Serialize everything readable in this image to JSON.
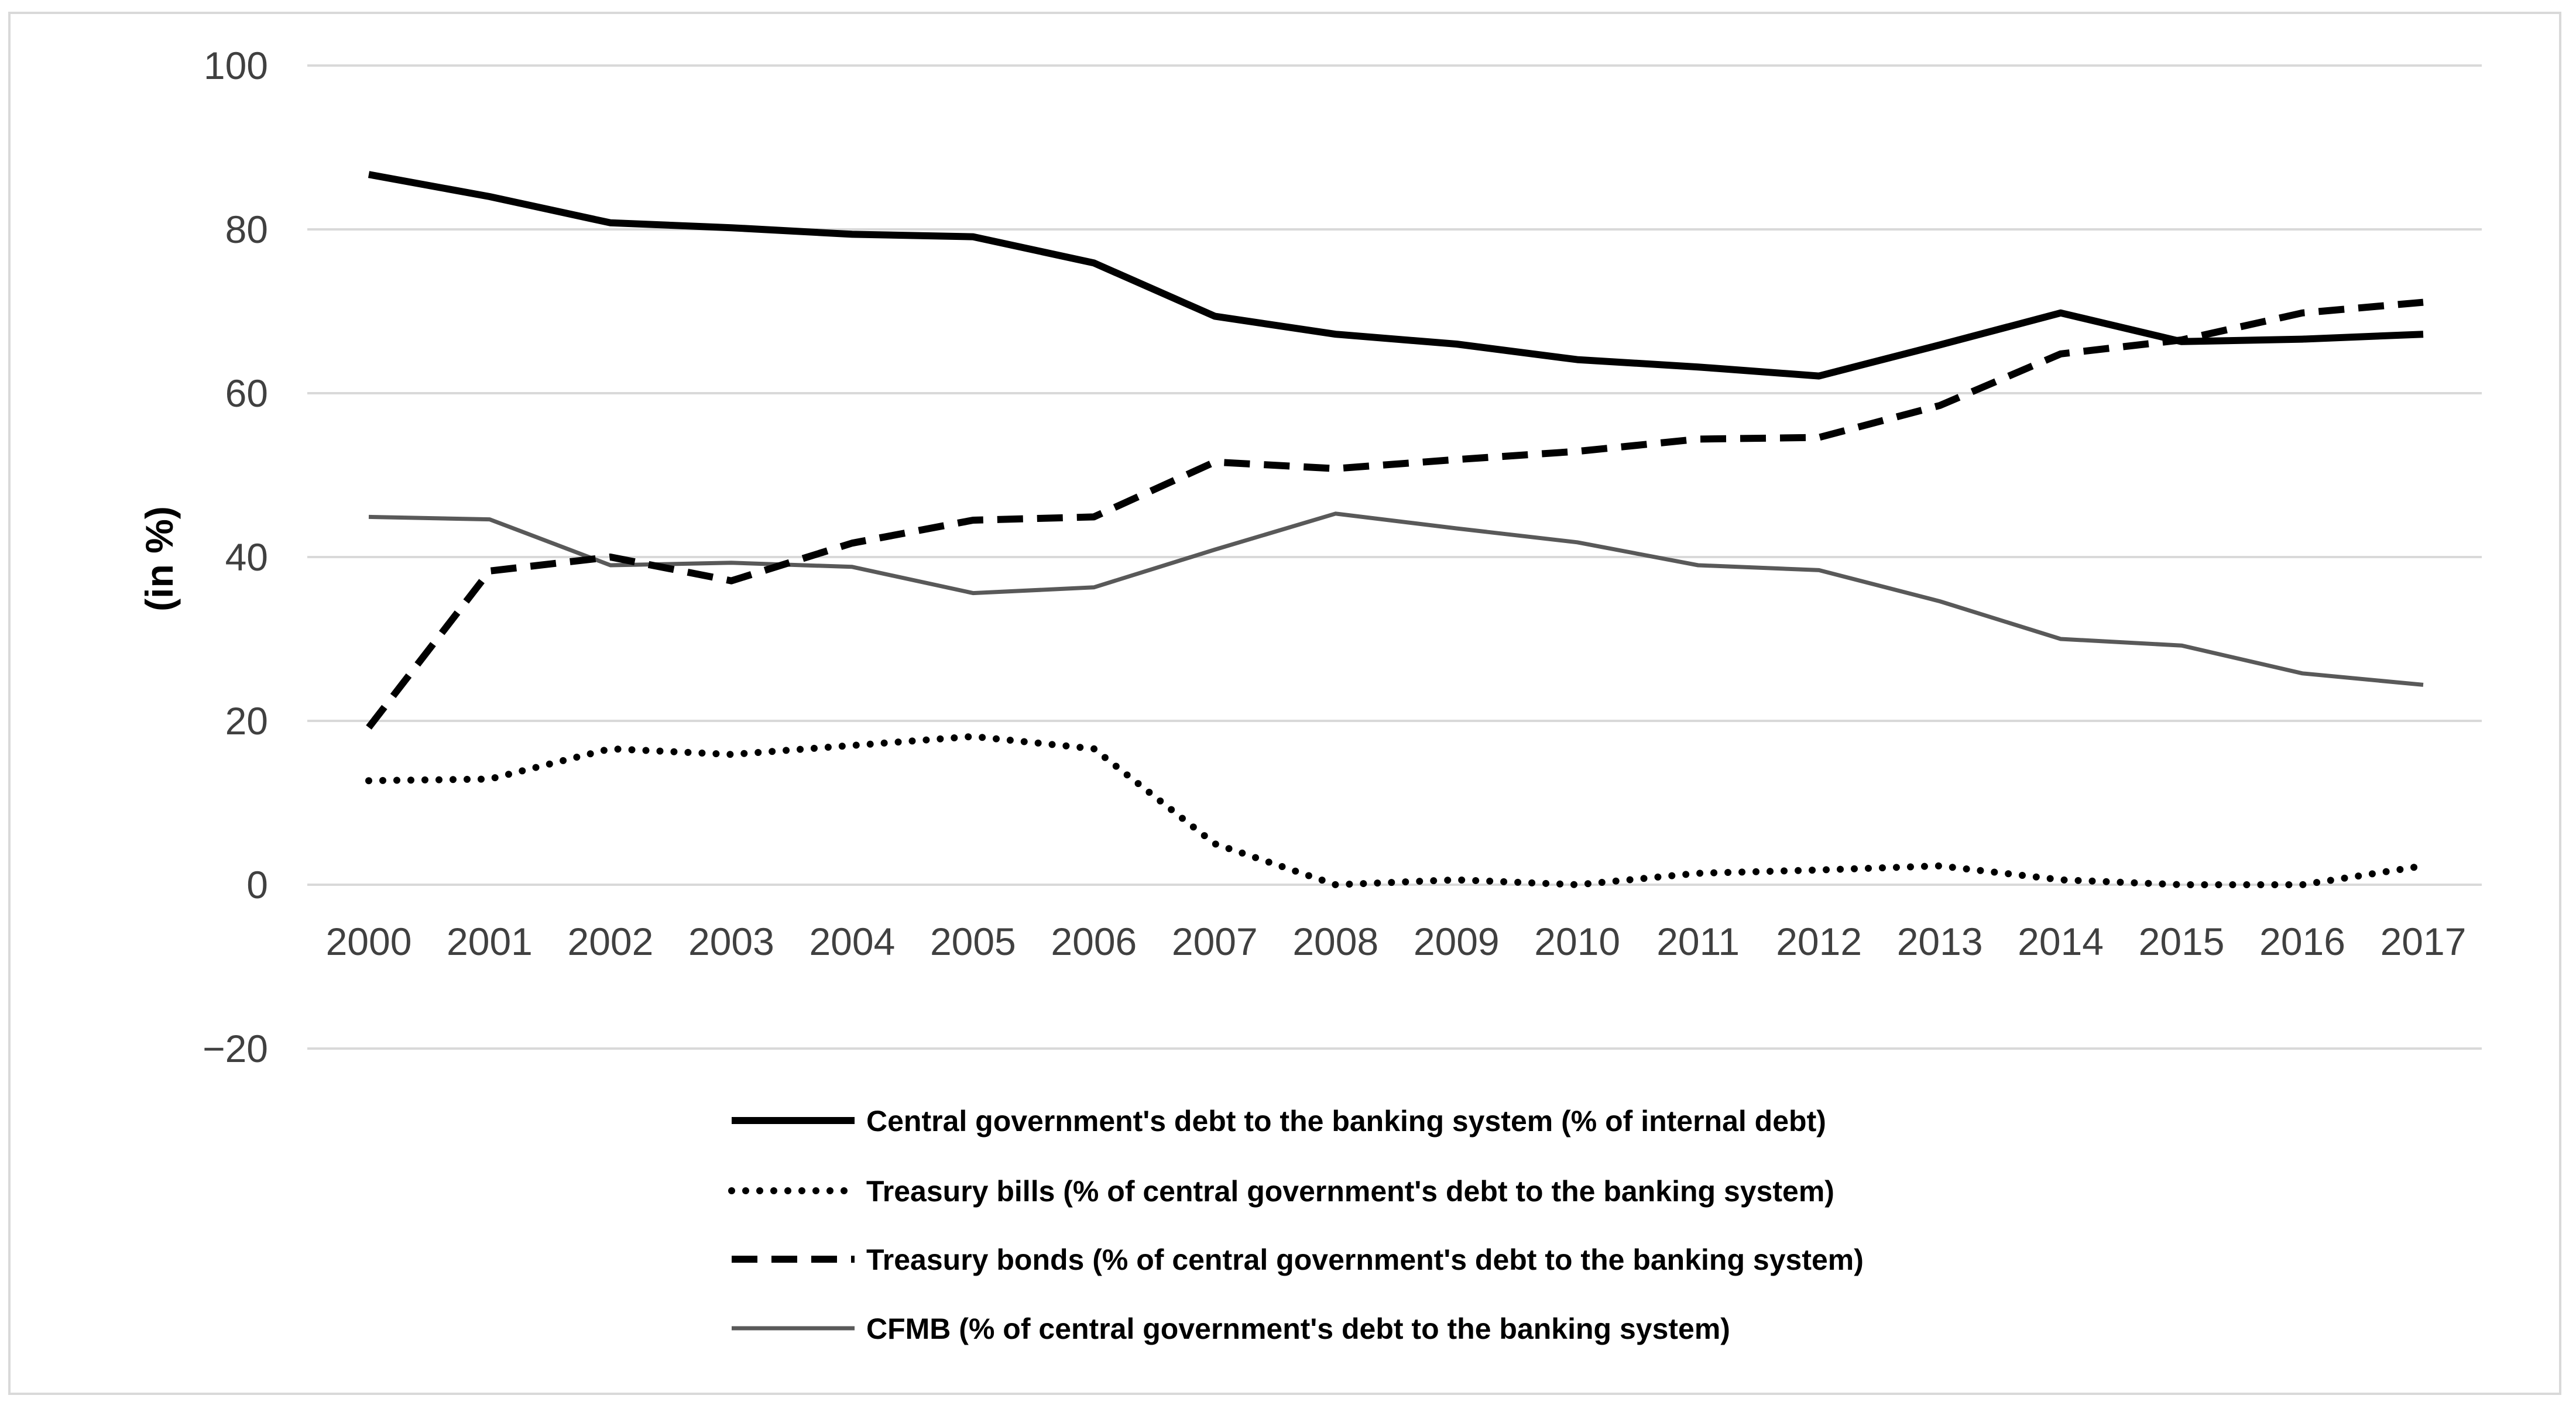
{
  "chart_data": {
    "type": "line",
    "title": "",
    "xlabel": "",
    "ylabel": "(in %)",
    "x": [
      "2000",
      "2001",
      "2002",
      "2003",
      "2004",
      "2005",
      "2006",
      "2007",
      "2008",
      "2009",
      "2010",
      "2011",
      "2012",
      "2013",
      "2014",
      "2015",
      "2016",
      "2017"
    ],
    "yticks": [
      "100",
      "80",
      "60",
      "40",
      "20",
      "0",
      "−20"
    ],
    "ylim": [
      -20,
      100
    ],
    "grid": "horizontal",
    "legend_position": "bottom",
    "series": [
      {
        "name": "Central government's debt to the banking system (% of internal debt)",
        "style": "solid-thick",
        "color": "#000000",
        "values": [
          86.7,
          84.0,
          80.8,
          80.2,
          79.4,
          79.1,
          75.9,
          69.4,
          67.2,
          66.0,
          64.1,
          63.2,
          62.1,
          65.9,
          69.8,
          66.3,
          66.6,
          67.2
        ]
      },
      {
        "name": "Treasury bills (% of central government's debt to the banking system)",
        "style": "dotted",
        "color": "#000000",
        "values": [
          12.7,
          12.9,
          16.6,
          15.9,
          17.0,
          18.1,
          16.6,
          5.0,
          0.0,
          0.6,
          0.0,
          1.4,
          1.8,
          2.3,
          0.6,
          0.0,
          0.0,
          2.3
        ]
      },
      {
        "name": "Treasury bonds (% of central government's debt to the banking system)",
        "style": "dashed",
        "color": "#000000",
        "values": [
          19.2,
          38.3,
          40.0,
          37.1,
          41.7,
          44.5,
          44.9,
          51.6,
          50.8,
          51.9,
          52.9,
          54.4,
          54.6,
          58.5,
          64.8,
          66.5,
          69.8,
          71.1
        ]
      },
      {
        "name": "CFMB (% of central government's debt to the banking system)",
        "style": "solid-thin",
        "color": "#595959",
        "values": [
          44.9,
          44.6,
          39.0,
          39.3,
          38.8,
          35.6,
          36.3,
          40.9,
          45.3,
          43.5,
          41.8,
          39.0,
          38.4,
          34.6,
          30.0,
          29.2,
          25.8,
          24.4
        ]
      }
    ]
  }
}
